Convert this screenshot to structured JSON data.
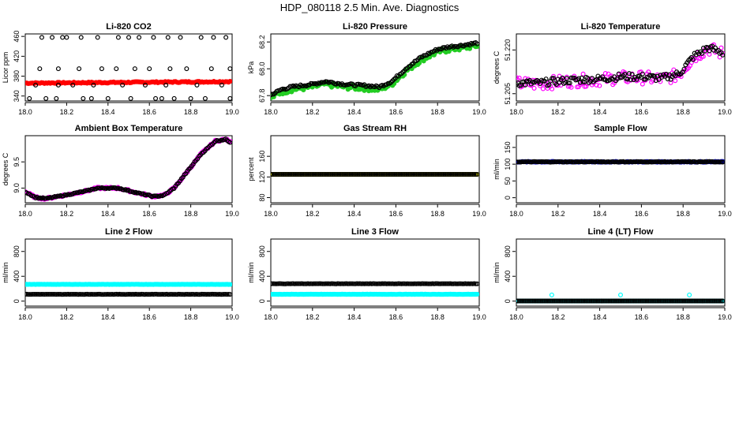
{
  "page_title": "HDP_080118  2.5 Min. Ave. Diagnostics",
  "colors": {
    "black": "#000000",
    "red": "#ff0000",
    "green": "#22cc22",
    "magenta": "#ff00ff",
    "yellow": "#ffff00",
    "blue": "#0000cc",
    "cyan": "#00ffff"
  },
  "chart_data": [
    {
      "type": "scatter",
      "title": "Li-820 CO2",
      "ylabel": "Licor ppm",
      "xlim": [
        18.0,
        19.0
      ],
      "ylim": [
        330,
        465
      ],
      "xticks": [
        "18.0",
        "18.2",
        "18.4",
        "18.6",
        "18.8",
        "19.0"
      ],
      "yticks": [
        "340",
        "380",
        "420",
        "460"
      ],
      "series": [
        {
          "name": "co2_avg",
          "color": "#ff0000",
          "filled": true,
          "pattern": "flat",
          "y0": 366,
          "y1": 369,
          "noise": 1.2
        },
        {
          "name": "co2_outliers",
          "color": "#000000",
          "filled": false,
          "points": [
            [
              18.02,
              335
            ],
            [
              18.05,
              362
            ],
            [
              18.07,
              395
            ],
            [
              18.08,
              458
            ],
            [
              18.1,
              335
            ],
            [
              18.13,
              458
            ],
            [
              18.15,
              335
            ],
            [
              18.16,
              362
            ],
            [
              18.16,
              395
            ],
            [
              18.18,
              458
            ],
            [
              18.2,
              458
            ],
            [
              18.23,
              362
            ],
            [
              18.26,
              395
            ],
            [
              18.27,
              458
            ],
            [
              18.28,
              335
            ],
            [
              18.32,
              335
            ],
            [
              18.33,
              362
            ],
            [
              18.35,
              458
            ],
            [
              18.37,
              395
            ],
            [
              18.4,
              335
            ],
            [
              18.44,
              395
            ],
            [
              18.45,
              458
            ],
            [
              18.47,
              362
            ],
            [
              18.5,
              458
            ],
            [
              18.51,
              335
            ],
            [
              18.53,
              395
            ],
            [
              18.55,
              458
            ],
            [
              18.58,
              362
            ],
            [
              18.6,
              395
            ],
            [
              18.62,
              458
            ],
            [
              18.63,
              335
            ],
            [
              18.66,
              335
            ],
            [
              18.68,
              362
            ],
            [
              18.69,
              458
            ],
            [
              18.7,
              395
            ],
            [
              18.72,
              335
            ],
            [
              18.75,
              458
            ],
            [
              18.78,
              395
            ],
            [
              18.8,
              335
            ],
            [
              18.83,
              362
            ],
            [
              18.85,
              458
            ],
            [
              18.87,
              335
            ],
            [
              18.9,
              395
            ],
            [
              18.91,
              458
            ],
            [
              18.95,
              362
            ],
            [
              18.97,
              458
            ],
            [
              18.99,
              335
            ],
            [
              18.99,
              395
            ]
          ]
        }
      ]
    },
    {
      "type": "scatter",
      "title": "Li-820 Pressure",
      "ylabel": "kPa",
      "xlim": [
        18.0,
        19.0
      ],
      "ylim": [
        67.76,
        68.26
      ],
      "xticks": [
        "18.0",
        "18.2",
        "18.4",
        "18.6",
        "18.8",
        "19.0"
      ],
      "yticks": [
        "67.8",
        "68.0",
        "68.2"
      ],
      "series": [
        {
          "name": "pressure_green",
          "color": "#22cc22",
          "filled": true,
          "pattern": "pressure",
          "offset": -0.015,
          "noise": 0.018
        },
        {
          "name": "pressure_black",
          "color": "#000000",
          "filled": false,
          "pattern": "pressure",
          "offset": 0.005,
          "noise": 0.008
        }
      ]
    },
    {
      "type": "scatter",
      "title": "Li-820 Temperature",
      "ylabel": "degrees C",
      "xlim": [
        18.0,
        19.0
      ],
      "ylim": [
        51.2025,
        51.2255
      ],
      "xticks": [
        "18.0",
        "18.2",
        "18.4",
        "18.6",
        "18.8",
        "19.0"
      ],
      "yticks": [
        "51.205",
        "51.220"
      ],
      "series": [
        {
          "name": "temp_magenta",
          "color": "#ff00ff",
          "filled": false,
          "pattern": "licortemp",
          "offset": 0.0,
          "noise": 0.0022
        },
        {
          "name": "temp_black",
          "color": "#000000",
          "filled": false,
          "pattern": "licortemp",
          "offset": 0.0003,
          "noise": 0.0012
        }
      ]
    },
    {
      "type": "scatter",
      "title": "Ambient Box Temperature",
      "ylabel": "degrees C",
      "xlim": [
        18.0,
        19.0
      ],
      "ylim": [
        8.72,
        10.0
      ],
      "xticks": [
        "18.0",
        "18.2",
        "18.4",
        "18.6",
        "18.8",
        "19.0"
      ],
      "yticks": [
        "9.0",
        "9.5"
      ],
      "series": [
        {
          "name": "box_magenta",
          "color": "#ff00ff",
          "filled": true,
          "pattern": "boxtemp",
          "offset": 0.0,
          "noise": 0.018
        },
        {
          "name": "box_black",
          "color": "#000000",
          "filled": false,
          "pattern": "boxtemp",
          "offset": 0.0,
          "noise": 0.01
        }
      ]
    },
    {
      "type": "scatter",
      "title": "Gas Stream RH",
      "ylabel": "percent",
      "xlim": [
        18.0,
        19.0
      ],
      "ylim": [
        70,
        200
      ],
      "xticks": [
        "18.0",
        "18.2",
        "18.4",
        "18.6",
        "18.8",
        "19.0"
      ],
      "yticks": [
        "80",
        "120",
        "160"
      ],
      "series": [
        {
          "name": "rh_yellow",
          "color": "#ffff00",
          "filled": true,
          "pattern": "flat",
          "y0": 125,
          "y1": 125,
          "noise": 0
        },
        {
          "name": "rh_black",
          "color": "#000000",
          "filled": false,
          "pattern": "flat",
          "y0": 125,
          "y1": 125,
          "noise": 0
        }
      ]
    },
    {
      "type": "scatter",
      "title": "Sample Flow",
      "ylabel": "ml/min",
      "xlim": [
        18.0,
        19.0
      ],
      "ylim": [
        -15,
        185
      ],
      "xticks": [
        "18.0",
        "18.2",
        "18.4",
        "18.6",
        "18.8",
        "19.0"
      ],
      "yticks": [
        "0",
        "50",
        "100",
        "150"
      ],
      "series": [
        {
          "name": "sample_blue",
          "color": "#0000cc",
          "filled": true,
          "pattern": "flat",
          "y0": 107,
          "y1": 107,
          "noise": 1
        },
        {
          "name": "sample_black",
          "color": "#000000",
          "filled": false,
          "pattern": "flat",
          "y0": 107,
          "y1": 107,
          "noise": 1
        }
      ]
    },
    {
      "type": "scatter",
      "title": "Line 2 Flow",
      "ylabel": "ml/min",
      "xlim": [
        18.0,
        19.0
      ],
      "ylim": [
        -80,
        1000
      ],
      "xticks": [
        "18.0",
        "18.2",
        "18.4",
        "18.6",
        "18.8",
        "19.0"
      ],
      "yticks": [
        "0",
        "400",
        "800"
      ],
      "series": [
        {
          "name": "line2_cyan",
          "color": "#00ffff",
          "filled": true,
          "pattern": "flat",
          "y0": 270,
          "y1": 270,
          "noise": 2
        },
        {
          "name": "line2_black",
          "color": "#000000",
          "filled": false,
          "pattern": "flat",
          "y0": 110,
          "y1": 110,
          "noise": 2
        }
      ]
    },
    {
      "type": "scatter",
      "title": "Line 3 Flow",
      "ylabel": "ml/min",
      "xlim": [
        18.0,
        19.0
      ],
      "ylim": [
        -80,
        1000
      ],
      "xticks": [
        "18.0",
        "18.2",
        "18.4",
        "18.6",
        "18.8",
        "19.0"
      ],
      "yticks": [
        "0",
        "400",
        "800"
      ],
      "series": [
        {
          "name": "line3_cyan",
          "color": "#00ffff",
          "filled": true,
          "pattern": "flat",
          "y0": 110,
          "y1": 110,
          "noise": 2
        },
        {
          "name": "line3_black",
          "color": "#000000",
          "filled": false,
          "pattern": "flat",
          "y0": 280,
          "y1": 280,
          "noise": 2
        }
      ]
    },
    {
      "type": "scatter",
      "title": "Line 4 (LT) Flow",
      "ylabel": "ml/min",
      "xlim": [
        18.0,
        19.0
      ],
      "ylim": [
        -80,
        1000
      ],
      "xticks": [
        "18.0",
        "18.2",
        "18.4",
        "18.6",
        "18.8",
        "19.0"
      ],
      "yticks": [
        "0",
        "400",
        "800"
      ],
      "series": [
        {
          "name": "line4_cyan",
          "color": "#00ffff",
          "filled": true,
          "pattern": "flat",
          "y0": 2,
          "y1": 2,
          "noise": 0
        },
        {
          "name": "line4_spikes",
          "color": "#00ffff",
          "filled": false,
          "points": [
            [
              18.17,
              100
            ],
            [
              18.5,
              100
            ],
            [
              18.83,
              100
            ]
          ]
        },
        {
          "name": "line4_black",
          "color": "#000000",
          "filled": false,
          "pattern": "flat",
          "y0": 2,
          "y1": 2,
          "noise": 0
        }
      ]
    }
  ]
}
